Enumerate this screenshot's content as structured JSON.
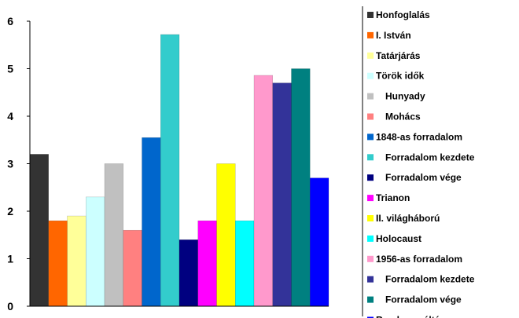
{
  "chart_data": {
    "type": "bar",
    "title": "",
    "xlabel": "",
    "ylabel": "",
    "ylim": [
      0,
      6
    ],
    "yticks": [
      0,
      1,
      2,
      3,
      4,
      5,
      6
    ],
    "grid": false,
    "legend_position": "right",
    "series": [
      {
        "name": "Honfoglalás",
        "value": 3.2,
        "color": "#333333"
      },
      {
        "name": "I. István",
        "value": 1.8,
        "color": "#ff6600"
      },
      {
        "name": "Tatárjárás",
        "value": 1.9,
        "color": "#ffff99"
      },
      {
        "name": "Török idők",
        "value": 2.3,
        "color": "#ccffff"
      },
      {
        "name": "Hunyady",
        "value": 3.0,
        "color": "#c0c0c0"
      },
      {
        "name": "Mohács",
        "value": 1.6,
        "color": "#ff8080"
      },
      {
        "name": "1848-as forradalom",
        "value": 3.55,
        "color": "#0066cc"
      },
      {
        "name": "Forradalom kezdete",
        "value": 5.72,
        "color": "#33cccc"
      },
      {
        "name": "Forradalom vége",
        "value": 1.4,
        "color": "#000080"
      },
      {
        "name": "Trianon",
        "value": 1.8,
        "color": "#ff00ff"
      },
      {
        "name": "II. világháború",
        "value": 3.0,
        "color": "#ffff00"
      },
      {
        "name": "Holocaust",
        "value": 1.8,
        "color": "#00ffff"
      },
      {
        "name": "1956-as forradalom",
        "value": 4.86,
        "color": "#ff99cc"
      },
      {
        "name": "Forradalom kezdete",
        "value": 4.7,
        "color": "#333399"
      },
      {
        "name": "Forradalom vége",
        "value": 5.0,
        "color": "#008080"
      },
      {
        "name": "Rendszerváltás",
        "value": 2.7,
        "color": "#0000ff"
      }
    ]
  }
}
